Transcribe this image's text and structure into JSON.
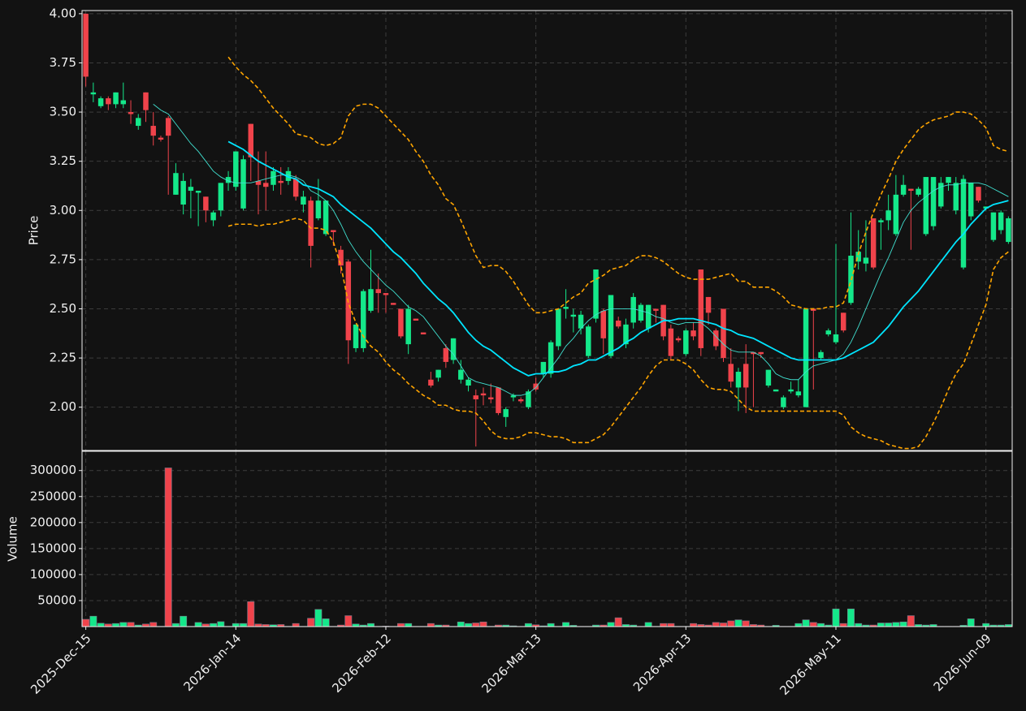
{
  "chart_data": {
    "type": "candlestick",
    "ylabel": "Price",
    "ylim": [
      1.78,
      4.016
    ],
    "yticks": [
      {
        "value": 2.0,
        "label": "2.00"
      },
      {
        "value": 2.25,
        "label": "2.25"
      },
      {
        "value": 2.5,
        "label": "2.50"
      },
      {
        "value": 2.75,
        "label": "2.75"
      },
      {
        "value": 3.0,
        "label": "3.00"
      },
      {
        "value": 3.25,
        "label": "3.25"
      },
      {
        "value": 3.5,
        "label": "3.50"
      },
      {
        "value": 3.75,
        "label": "3.75"
      },
      {
        "value": 4.0,
        "label": "4.00"
      }
    ],
    "grid": true,
    "up_color": "#14e88a",
    "down_color": "#f0434b",
    "categories": [
      "2025-Dec-15",
      null,
      null,
      null,
      null,
      null,
      null,
      null,
      null,
      null,
      null,
      null,
      null,
      null,
      null,
      null,
      null,
      null,
      null,
      null,
      "2026-Jan-14",
      null,
      null,
      null,
      null,
      null,
      null,
      null,
      null,
      null,
      null,
      null,
      null,
      null,
      null,
      null,
      null,
      null,
      null,
      null,
      "2026-Feb-12",
      null,
      null,
      null,
      null,
      null,
      null,
      null,
      null,
      null,
      null,
      null,
      null,
      null,
      null,
      null,
      null,
      null,
      null,
      null,
      "2026-Mar-13",
      null,
      null,
      null,
      null,
      null,
      null,
      null,
      null,
      null,
      null,
      null,
      null,
      null,
      null,
      null,
      null,
      null,
      null,
      null,
      "2026-Apr-13",
      null,
      null,
      null,
      null,
      null,
      null,
      null,
      null,
      null,
      null,
      null,
      null,
      null,
      null,
      null,
      null,
      null,
      null,
      null,
      "2026-May-11",
      null,
      null,
      null,
      null,
      null,
      null,
      null,
      null,
      null,
      null,
      null,
      null,
      null,
      null,
      null,
      null,
      null,
      null,
      null,
      "2026-Jun-09",
      null,
      null,
      null
    ],
    "open": [
      4.0,
      3.59,
      3.53,
      3.57,
      3.54,
      3.54,
      3.5,
      3.43,
      3.6,
      3.43,
      3.37,
      3.47,
      3.08,
      3.03,
      3.1,
      3.09,
      3.07,
      2.95,
      3.0,
      3.14,
      3.12,
      3.01,
      3.44,
      3.15,
      3.14,
      3.13,
      3.15,
      3.15,
      3.16,
      3.03,
      3.05,
      2.96,
      2.88,
      2.9,
      2.8,
      2.74,
      2.3,
      2.3,
      2.49,
      2.6,
      2.58,
      2.53,
      2.5,
      2.32,
      2.45,
      2.38,
      2.14,
      2.15,
      2.3,
      2.24,
      2.14,
      2.11,
      2.06,
      2.07,
      2.05,
      2.1,
      1.95,
      2.05,
      2.04,
      2.0,
      2.12,
      2.17,
      2.17,
      2.31,
      2.5,
      2.46,
      2.4,
      2.26,
      2.45,
      2.49,
      2.26,
      2.44,
      2.32,
      2.43,
      2.44,
      2.4,
      2.5,
      2.52,
      2.4,
      2.35,
      2.27,
      2.39,
      2.7,
      2.56,
      2.39,
      2.5,
      2.22,
      2.1,
      2.22,
      2.28,
      2.28,
      2.11,
      2.08,
      2.0,
      2.08,
      2.06,
      2.0,
      2.5,
      2.25,
      2.37,
      2.33,
      2.48,
      2.53,
      2.74,
      2.73,
      2.96,
      2.94,
      2.95,
      2.88,
      3.08,
      3.11,
      3.08,
      2.88,
      2.92,
      3.02,
      3.14,
      3.0,
      2.71,
      2.97,
      3.12,
      3.01,
      2.85,
      2.9,
      2.84
    ],
    "high": [
      4.0,
      3.65,
      3.58,
      3.58,
      3.6,
      3.65,
      3.56,
      3.49,
      3.6,
      3.5,
      3.38,
      3.48,
      3.24,
      3.19,
      3.16,
      3.1,
      3.07,
      3.0,
      3.14,
      3.2,
      3.3,
      3.28,
      3.44,
      3.3,
      3.3,
      3.22,
      3.22,
      3.22,
      3.18,
      3.1,
      3.07,
      3.16,
      3.05,
      2.9,
      2.82,
      2.75,
      2.42,
      2.6,
      2.8,
      2.68,
      2.58,
      2.53,
      2.5,
      2.52,
      2.45,
      2.38,
      2.18,
      2.19,
      2.32,
      2.35,
      2.24,
      2.15,
      2.09,
      2.1,
      2.12,
      2.1,
      2.0,
      2.07,
      2.05,
      2.09,
      2.15,
      2.23,
      2.34,
      2.5,
      2.6,
      2.5,
      2.49,
      2.42,
      2.7,
      2.5,
      2.57,
      2.46,
      2.45,
      2.58,
      2.53,
      2.52,
      2.5,
      2.52,
      2.42,
      2.36,
      2.4,
      2.43,
      2.7,
      2.56,
      2.4,
      2.5,
      2.3,
      2.2,
      2.32,
      2.28,
      2.28,
      2.19,
      2.09,
      2.06,
      2.13,
      2.14,
      2.5,
      2.5,
      2.29,
      2.4,
      2.83,
      2.48,
      2.99,
      2.9,
      2.95,
      2.96,
      2.96,
      3.08,
      3.18,
      3.18,
      3.11,
      3.12,
      3.17,
      3.17,
      3.17,
      3.17,
      3.17,
      3.18,
      3.14,
      3.12,
      3.02,
      2.99,
      3.0,
      2.97
    ],
    "low": [
      3.63,
      3.55,
      3.52,
      3.51,
      3.52,
      3.52,
      3.44,
      3.41,
      3.45,
      3.33,
      3.35,
      3.08,
      3.08,
      2.98,
      2.96,
      2.92,
      2.94,
      2.92,
      2.97,
      3.1,
      3.1,
      3.0,
      3.15,
      2.98,
      3.0,
      3.1,
      3.08,
      3.13,
      3.05,
      2.99,
      2.71,
      2.95,
      2.87,
      2.82,
      2.68,
      2.22,
      2.28,
      2.28,
      2.48,
      2.48,
      2.48,
      2.52,
      2.35,
      2.27,
      2.44,
      2.37,
      2.1,
      2.13,
      2.2,
      2.22,
      2.12,
      2.08,
      1.8,
      2.01,
      2.02,
      1.96,
      1.9,
      2.03,
      2.02,
      1.99,
      2.08,
      2.15,
      2.15,
      2.29,
      2.45,
      2.38,
      2.37,
      2.25,
      2.43,
      2.27,
      2.25,
      2.4,
      2.3,
      2.4,
      2.43,
      2.38,
      2.43,
      2.34,
      2.24,
      2.33,
      2.26,
      2.34,
      2.26,
      2.42,
      2.29,
      2.23,
      2.1,
      1.98,
      1.97,
      2.0,
      2.25,
      2.1,
      2.08,
      1.99,
      2.07,
      2.05,
      2.0,
      2.09,
      2.24,
      2.36,
      2.32,
      2.38,
      2.52,
      2.7,
      2.69,
      2.7,
      2.8,
      2.9,
      2.87,
      3.07,
      2.8,
      3.07,
      2.87,
      2.9,
      3.01,
      3.1,
      2.98,
      2.7,
      2.95,
      3.04,
      3.0,
      2.84,
      2.88,
      2.83
    ],
    "close": [
      3.68,
      3.6,
      3.57,
      3.54,
      3.6,
      3.56,
      3.49,
      3.47,
      3.51,
      3.38,
      3.36,
      3.38,
      3.19,
      3.15,
      3.12,
      3.1,
      3.0,
      2.99,
      3.14,
      3.17,
      3.3,
      3.26,
      3.27,
      3.13,
      3.12,
      3.2,
      3.14,
      3.2,
      3.07,
      3.07,
      2.82,
      3.05,
      3.05,
      2.89,
      2.72,
      2.34,
      2.42,
      2.59,
      2.6,
      2.58,
      2.57,
      2.52,
      2.36,
      2.5,
      2.44,
      2.37,
      2.11,
      2.19,
      2.23,
      2.35,
      2.19,
      2.14,
      2.04,
      2.06,
      2.04,
      1.97,
      1.99,
      2.06,
      2.03,
      2.08,
      2.09,
      2.23,
      2.33,
      2.5,
      2.51,
      2.47,
      2.47,
      2.41,
      2.7,
      2.35,
      2.57,
      2.41,
      2.42,
      2.56,
      2.52,
      2.52,
      2.49,
      2.36,
      2.26,
      2.34,
      2.39,
      2.36,
      2.3,
      2.48,
      2.31,
      2.25,
      2.13,
      2.18,
      2.1,
      2.27,
      2.27,
      2.19,
      2.09,
      2.05,
      2.09,
      2.08,
      2.5,
      2.49,
      2.28,
      2.39,
      2.37,
      2.39,
      2.77,
      2.79,
      2.76,
      2.71,
      2.95,
      3.0,
      3.08,
      3.13,
      3.1,
      3.11,
      3.17,
      3.17,
      3.14,
      3.17,
      3.14,
      3.16,
      3.14,
      3.05,
      3.02,
      2.99,
      2.99,
      2.96
    ],
    "overlays": [
      {
        "color": "#40e0d0",
        "width": 0.9,
        "style": "solid",
        "values": [
          null,
          null,
          null,
          null,
          null,
          null,
          null,
          null,
          null,
          3.54,
          3.51,
          3.49,
          3.44,
          3.39,
          3.34,
          3.3,
          3.25,
          3.2,
          3.17,
          3.15,
          3.14,
          3.14,
          3.14,
          3.15,
          3.16,
          3.17,
          3.18,
          3.18,
          3.17,
          3.15,
          3.1,
          3.08,
          3.05,
          3.0,
          2.93,
          2.85,
          2.79,
          2.74,
          2.7,
          2.66,
          2.62,
          2.59,
          2.55,
          2.51,
          2.49,
          2.46,
          2.41,
          2.36,
          2.31,
          2.27,
          2.21,
          2.15,
          2.13,
          2.12,
          2.11,
          2.1,
          2.08,
          2.06,
          2.06,
          2.07,
          2.1,
          2.15,
          2.2,
          2.25,
          2.31,
          2.35,
          2.4,
          2.44,
          2.47,
          2.49,
          2.5,
          2.5,
          2.5,
          2.5,
          2.49,
          2.48,
          2.46,
          2.45,
          2.43,
          2.42,
          2.43,
          2.43,
          2.43,
          2.4,
          2.36,
          2.32,
          2.29,
          2.28,
          2.28,
          2.28,
          2.26,
          2.22,
          2.17,
          2.15,
          2.14,
          2.14,
          2.18,
          2.21,
          2.22,
          2.23,
          2.24,
          2.27,
          2.33,
          2.41,
          2.5,
          2.59,
          2.68,
          2.76,
          2.85,
          2.94,
          3.0,
          3.04,
          3.07,
          3.1,
          3.12,
          3.13,
          3.13,
          3.14,
          3.14,
          3.14,
          3.13,
          3.11,
          3.09,
          3.07
        ]
      },
      {
        "color": "#00e5ff",
        "width": 1.8,
        "style": "solid",
        "values": [
          null,
          null,
          null,
          null,
          null,
          null,
          null,
          null,
          null,
          null,
          null,
          null,
          null,
          null,
          null,
          null,
          null,
          null,
          null,
          3.35,
          3.33,
          3.31,
          3.28,
          3.25,
          3.23,
          3.21,
          3.19,
          3.17,
          3.16,
          3.13,
          3.12,
          3.11,
          3.09,
          3.07,
          3.03,
          3.0,
          2.97,
          2.94,
          2.91,
          2.87,
          2.83,
          2.79,
          2.76,
          2.72,
          2.68,
          2.63,
          2.59,
          2.55,
          2.52,
          2.48,
          2.43,
          2.38,
          2.34,
          2.31,
          2.29,
          2.26,
          2.23,
          2.2,
          2.18,
          2.16,
          2.17,
          2.17,
          2.18,
          2.18,
          2.19,
          2.21,
          2.22,
          2.24,
          2.24,
          2.26,
          2.28,
          2.3,
          2.33,
          2.35,
          2.38,
          2.4,
          2.42,
          2.44,
          2.44,
          2.45,
          2.45,
          2.45,
          2.44,
          2.43,
          2.42,
          2.4,
          2.39,
          2.37,
          2.36,
          2.35,
          2.33,
          2.31,
          2.29,
          2.27,
          2.25,
          2.24,
          2.24,
          2.24,
          2.24,
          2.24,
          2.24,
          2.25,
          2.27,
          2.29,
          2.31,
          2.33,
          2.37,
          2.41,
          2.46,
          2.51,
          2.55,
          2.59,
          2.64,
          2.69,
          2.74,
          2.79,
          2.84,
          2.88,
          2.93,
          2.97,
          3.01,
          3.03,
          3.04,
          3.05
        ]
      },
      {
        "color": "#ffa500",
        "width": 1.6,
        "style": "dashed",
        "values": [
          null,
          null,
          null,
          null,
          null,
          null,
          null,
          null,
          null,
          null,
          null,
          null,
          null,
          null,
          null,
          null,
          null,
          null,
          null,
          3.78,
          3.73,
          3.69,
          3.66,
          3.62,
          3.57,
          3.52,
          3.48,
          3.44,
          3.39,
          3.38,
          3.37,
          3.34,
          3.33,
          3.34,
          3.37,
          3.48,
          3.53,
          3.54,
          3.54,
          3.52,
          3.48,
          3.44,
          3.4,
          3.36,
          3.3,
          3.25,
          3.18,
          3.13,
          3.06,
          3.03,
          2.95,
          2.86,
          2.77,
          2.71,
          2.72,
          2.72,
          2.69,
          2.64,
          2.58,
          2.52,
          2.48,
          2.48,
          2.49,
          2.5,
          2.53,
          2.56,
          2.58,
          2.63,
          2.65,
          2.67,
          2.7,
          2.71,
          2.72,
          2.75,
          2.77,
          2.77,
          2.76,
          2.74,
          2.71,
          2.68,
          2.66,
          2.65,
          2.65,
          2.65,
          2.66,
          2.67,
          2.68,
          2.64,
          2.64,
          2.61,
          2.61,
          2.61,
          2.59,
          2.56,
          2.52,
          2.51,
          2.5,
          2.5,
          2.5,
          2.51,
          2.51,
          2.53,
          2.64,
          2.78,
          2.89,
          2.99,
          3.08,
          3.16,
          3.25,
          3.31,
          3.36,
          3.41,
          3.44,
          3.46,
          3.47,
          3.48,
          3.5,
          3.5,
          3.49,
          3.46,
          3.42,
          3.33,
          3.31,
          3.3
        ]
      },
      {
        "color": "#ffa500",
        "width": 1.6,
        "style": "dashed",
        "values": [
          null,
          null,
          null,
          null,
          null,
          null,
          null,
          null,
          null,
          null,
          null,
          null,
          null,
          null,
          null,
          null,
          null,
          null,
          null,
          2.92,
          2.93,
          2.93,
          2.93,
          2.92,
          2.93,
          2.93,
          2.94,
          2.95,
          2.96,
          2.95,
          2.91,
          2.91,
          2.9,
          2.84,
          2.72,
          2.53,
          2.43,
          2.36,
          2.31,
          2.28,
          2.23,
          2.19,
          2.16,
          2.12,
          2.09,
          2.06,
          2.04,
          2.01,
          2.01,
          1.99,
          1.98,
          1.98,
          1.97,
          1.93,
          1.88,
          1.85,
          1.84,
          1.84,
          1.85,
          1.87,
          1.87,
          1.86,
          1.85,
          1.85,
          1.84,
          1.82,
          1.82,
          1.82,
          1.84,
          1.86,
          1.9,
          1.95,
          2.0,
          2.05,
          2.1,
          2.16,
          2.21,
          2.24,
          2.24,
          2.24,
          2.22,
          2.19,
          2.14,
          2.1,
          2.09,
          2.09,
          2.08,
          2.04,
          2.0,
          1.98,
          1.98,
          1.98,
          1.98,
          1.98,
          1.98,
          1.98,
          1.98,
          1.98,
          1.98,
          1.98,
          1.98,
          1.96,
          1.9,
          1.87,
          1.85,
          1.84,
          1.83,
          1.81,
          1.8,
          1.79,
          1.79,
          1.8,
          1.85,
          1.92,
          2.0,
          2.09,
          2.17,
          2.22,
          2.32,
          2.42,
          2.52,
          2.7,
          2.76,
          2.79
        ]
      }
    ],
    "volume": {
      "type": "bar",
      "ylabel": "Volume",
      "ylim": [
        0,
        337000
      ],
      "yticks": [
        50000,
        100000,
        150000,
        200000,
        250000,
        300000
      ],
      "values": [
        14000,
        20000,
        6500,
        5000,
        6000,
        8000,
        8000,
        3000,
        5000,
        8000,
        500,
        305000,
        6000,
        20000,
        500,
        8000,
        5000,
        6000,
        9500,
        500,
        6000,
        6000,
        48000,
        5000,
        4000,
        3500,
        4000,
        500,
        6000,
        500,
        16000,
        33000,
        15000,
        500,
        3000,
        21000,
        5000,
        3000,
        6000,
        500,
        1000,
        500,
        6000,
        6000,
        500,
        500,
        6000,
        3000,
        3000,
        500,
        9000,
        6000,
        7000,
        9000,
        500,
        3000,
        3000,
        1500,
        500,
        6000,
        3500,
        1500,
        6000,
        500,
        8000,
        2500,
        500,
        500,
        3000,
        3000,
        8000,
        17000,
        4000,
        3000,
        500,
        8000,
        500,
        6000,
        6000,
        500,
        500,
        6000,
        4000,
        3000,
        8000,
        7000,
        11000,
        13000,
        11000,
        4000,
        3000,
        500,
        2500,
        500,
        500,
        6000,
        13000,
        8000,
        6000,
        3000,
        34000,
        6000,
        34000,
        6000,
        3000,
        3000,
        7000,
        7000,
        8000,
        9000,
        21000,
        4000,
        3000,
        4000,
        500,
        500,
        500,
        2500,
        15000,
        500,
        6000,
        3000,
        3000,
        4000
      ]
    }
  }
}
